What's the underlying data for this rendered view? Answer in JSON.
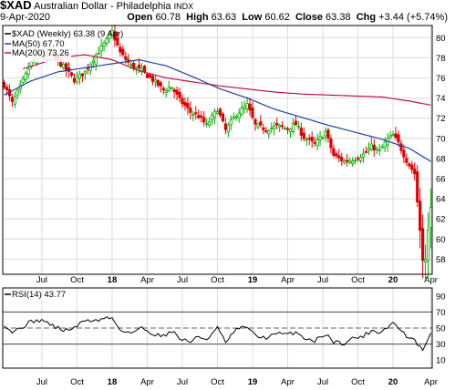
{
  "header": {
    "symbol": "$XAD",
    "name": "Australian Dollar - Philadelphia",
    "exchange": "INDX",
    "date": "9-Apr-2020",
    "ohlc": {
      "open_label": "Open",
      "open": "60.78",
      "high_label": "High",
      "high": "63.63",
      "low_label": "Low",
      "low": "60.62",
      "close_label": "Close",
      "close": "63.38",
      "chg_label": "Chg",
      "chg": "+3.44 (+5.74%)"
    }
  },
  "legend": {
    "main": "$XAD (Weekly) 63.38 (9 Apr)",
    "ma50": "MA(50) 67.70",
    "ma200": "MA(200) 73.26",
    "rsi": "RSI(14) 43.77"
  },
  "colors": {
    "up": "#00aa00",
    "down": "#dd0000",
    "ma50": "#1f3fa8",
    "ma200": "#c0143c",
    "rsi": "#000000",
    "grid": "#dcdcdc"
  },
  "chart_data": [
    {
      "type": "candlestick",
      "ylim": [
        56.5,
        81.2
      ],
      "y_ticks": [
        58,
        60,
        62,
        64,
        66,
        68,
        70,
        72,
        74,
        76,
        78,
        80
      ],
      "x_ticks": [
        {
          "label": "Jul",
          "w": 14,
          "bold": false
        },
        {
          "label": "Oct",
          "w": 27,
          "bold": false
        },
        {
          "label": "18",
          "w": 40,
          "bold": true
        },
        {
          "label": "Apr",
          "w": 53,
          "bold": false
        },
        {
          "label": "Jul",
          "w": 66,
          "bold": false
        },
        {
          "label": "Oct",
          "w": 79,
          "bold": false
        },
        {
          "label": "19",
          "w": 92,
          "bold": true
        },
        {
          "label": "Apr",
          "w": 105,
          "bold": false
        },
        {
          "label": "Jul",
          "w": 118,
          "bold": false
        },
        {
          "label": "Oct",
          "w": 131,
          "bold": false
        },
        {
          "label": "20",
          "w": 144,
          "bold": true
        },
        {
          "label": "Apr",
          "w": 158,
          "bold": false
        }
      ],
      "close_anchors": [
        [
          0,
          75.3
        ],
        [
          3,
          73.5
        ],
        [
          6,
          75.1
        ],
        [
          10,
          77.5
        ],
        [
          14,
          78.3
        ],
        [
          18,
          78.2
        ],
        [
          22,
          77.1
        ],
        [
          26,
          75.8
        ],
        [
          30,
          76.6
        ],
        [
          34,
          78.3
        ],
        [
          38,
          79.7
        ],
        [
          40,
          80.6
        ],
        [
          43,
          78.5
        ],
        [
          47,
          77.2
        ],
        [
          51,
          76.7
        ],
        [
          55,
          75.8
        ],
        [
          59,
          74.8
        ],
        [
          62,
          75.1
        ],
        [
          65,
          73.8
        ],
        [
          69,
          72.6
        ],
        [
          72,
          72.2
        ],
        [
          75,
          71.3
        ],
        [
          79,
          72.9
        ],
        [
          82,
          70.8
        ],
        [
          86,
          72.4
        ],
        [
          90,
          73.3
        ],
        [
          93,
          71.3
        ],
        [
          97,
          70.9
        ],
        [
          101,
          71.2
        ],
        [
          105,
          71.0
        ],
        [
          108,
          71.4
        ],
        [
          111,
          70.1
        ],
        [
          115,
          69.4
        ],
        [
          119,
          70.6
        ],
        [
          122,
          68.3
        ],
        [
          126,
          67.7
        ],
        [
          129,
          67.9
        ],
        [
          133,
          68.4
        ],
        [
          136,
          69.2
        ],
        [
          139,
          68.7
        ],
        [
          142,
          69.9
        ],
        [
          144,
          70.3
        ],
        [
          146,
          69.5
        ],
        [
          149,
          67.8
        ],
        [
          152,
          66.5
        ],
        [
          155,
          58.1
        ],
        [
          156,
          57.9
        ],
        [
          157,
          60.8
        ],
        [
          158,
          63.4
        ]
      ],
      "ma50": [
        [
          0,
          74.3
        ],
        [
          10,
          75.7
        ],
        [
          20,
          76.6
        ],
        [
          30,
          77.0
        ],
        [
          40,
          77.4
        ],
        [
          50,
          77.8
        ],
        [
          60,
          77.2
        ],
        [
          70,
          76.1
        ],
        [
          80,
          74.9
        ],
        [
          90,
          74.0
        ],
        [
          100,
          72.9
        ],
        [
          110,
          72.1
        ],
        [
          120,
          71.3
        ],
        [
          130,
          70.6
        ],
        [
          140,
          69.9
        ],
        [
          150,
          69.0
        ],
        [
          158,
          67.7
        ]
      ],
      "ma200": [
        [
          7,
          76.9
        ],
        [
          20,
          78.0
        ],
        [
          30,
          78.3
        ],
        [
          40,
          77.8
        ],
        [
          50,
          76.7
        ],
        [
          60,
          76.0
        ],
        [
          70,
          75.6
        ],
        [
          80,
          75.2
        ],
        [
          90,
          74.9
        ],
        [
          100,
          74.6
        ],
        [
          110,
          74.4
        ],
        [
          120,
          74.3
        ],
        [
          130,
          74.2
        ],
        [
          140,
          74.1
        ],
        [
          150,
          73.7
        ],
        [
          158,
          73.3
        ]
      ]
    },
    {
      "type": "line",
      "name": "RSI(14)",
      "ylim": [
        0,
        100
      ],
      "y_ticks": [
        10,
        30,
        50,
        70,
        90
      ],
      "ref_lines": [
        30,
        50,
        70
      ],
      "anchors": [
        [
          0,
          55
        ],
        [
          3,
          45
        ],
        [
          6,
          50
        ],
        [
          10,
          58
        ],
        [
          14,
          60
        ],
        [
          18,
          53
        ],
        [
          22,
          47
        ],
        [
          26,
          50
        ],
        [
          30,
          60
        ],
        [
          34,
          59
        ],
        [
          38,
          63
        ],
        [
          40,
          62
        ],
        [
          43,
          48
        ],
        [
          47,
          44
        ],
        [
          51,
          50
        ],
        [
          55,
          43
        ],
        [
          59,
          40
        ],
        [
          62,
          47
        ],
        [
          65,
          37
        ],
        [
          69,
          33
        ],
        [
          72,
          39
        ],
        [
          75,
          36
        ],
        [
          79,
          50
        ],
        [
          82,
          32
        ],
        [
          86,
          48
        ],
        [
          90,
          52
        ],
        [
          93,
          40
        ],
        [
          97,
          38
        ],
        [
          101,
          43
        ],
        [
          105,
          42
        ],
        [
          108,
          45
        ],
        [
          111,
          38
        ],
        [
          115,
          34
        ],
        [
          119,
          43
        ],
        [
          122,
          33
        ],
        [
          126,
          31
        ],
        [
          129,
          37
        ],
        [
          133,
          40
        ],
        [
          136,
          47
        ],
        [
          139,
          45
        ],
        [
          142,
          51
        ],
        [
          144,
          57
        ],
        [
          146,
          50
        ],
        [
          149,
          40
        ],
        [
          152,
          34
        ],
        [
          155,
          22
        ],
        [
          156,
          27
        ],
        [
          157,
          38
        ],
        [
          158,
          43.77
        ]
      ]
    }
  ]
}
